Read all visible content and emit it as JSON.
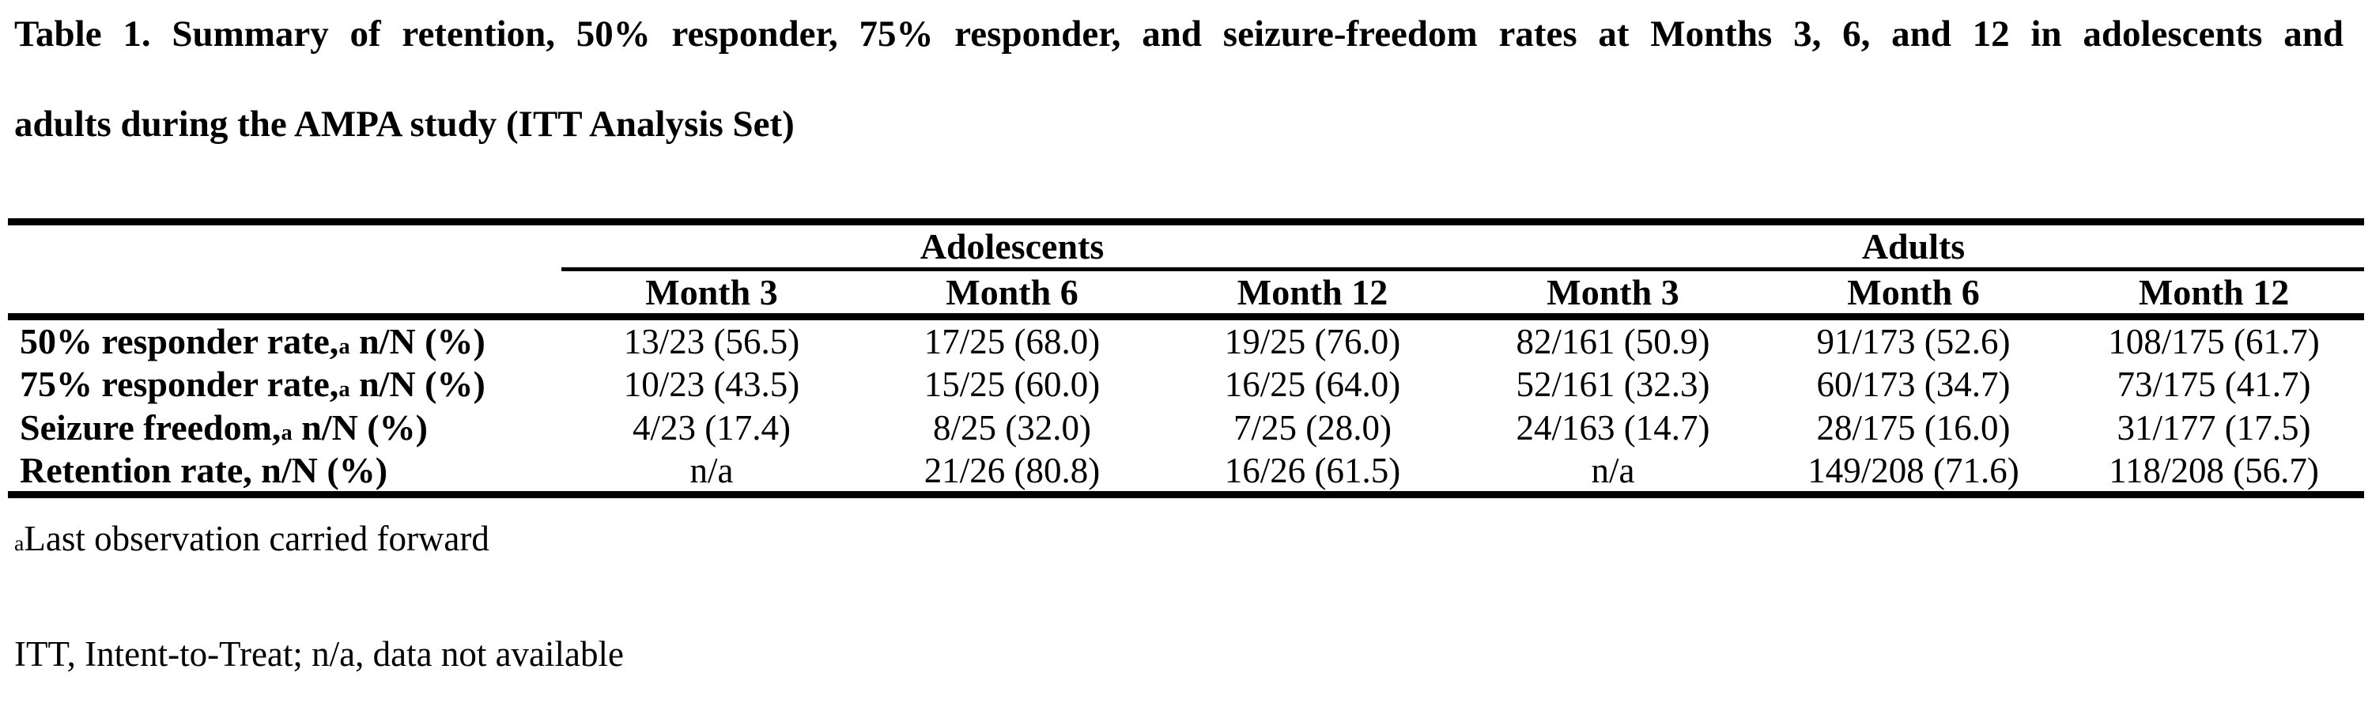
{
  "page": {
    "background_color": "#ffffff",
    "text_color": "#000000"
  },
  "title": {
    "full": "Table 1. Summary of retention, 50% responder, 75% responder, and seizure-freedom rates at Months 3, 6, and 12 in adolescents and adults during the AMPA study (ITT Analysis Set)",
    "line1": "Table 1. Summary of retention, 50% responder, 75% responder, and seizure-freedom rates at Months 3, 6, and 12 in adolescents and",
    "line2": "adults during the AMPA study (ITT Analysis Set)"
  },
  "table": {
    "groups": [
      {
        "label": "Adolescents",
        "span": "3"
      },
      {
        "label": "Adults",
        "span": "3"
      }
    ],
    "columns": [
      "Month 3",
      "Month 6",
      "Month 12",
      "Month 3",
      "Month 6",
      "Month 12"
    ],
    "rows": [
      {
        "label": {
          "pre": "50% responder rate,",
          "sup": "a",
          "post": " n/N (%)"
        },
        "values": [
          "13/23 (56.5)",
          "17/25 (68.0)",
          "19/25 (76.0)",
          "82/161 (50.9)",
          "91/173 (52.6)",
          "108/175 (61.7)"
        ]
      },
      {
        "label": {
          "pre": "75% responder rate,",
          "sup": "a",
          "post": " n/N (%)"
        },
        "values": [
          "10/23 (43.5)",
          "15/25 (60.0)",
          "16/25 (64.0)",
          "52/161 (32.3)",
          "60/173 (34.7)",
          "73/175 (41.7)"
        ]
      },
      {
        "label": {
          "pre": "Seizure freedom,",
          "sup": "a",
          "post": " n/N (%)"
        },
        "values": [
          "4/23 (17.4)",
          "8/25 (32.0)",
          "7/25 (28.0)",
          "24/163 (14.7)",
          "28/175 (16.0)",
          "31/177 (17.5)"
        ]
      },
      {
        "label": {
          "pre": "Retention rate, n/N (%)",
          "sup": "",
          "post": ""
        },
        "values": [
          "n/a",
          "21/26 (80.8)",
          "16/26 (61.5)",
          "n/a",
          "149/208 (71.6)",
          "118/208 (56.7)"
        ]
      }
    ]
  },
  "footnotes": [
    {
      "sup": "a",
      "text": "Last observation carried forward"
    },
    {
      "sup": "",
      "text": "ITT, Intent-to-Treat; n/a, data not available"
    }
  ]
}
